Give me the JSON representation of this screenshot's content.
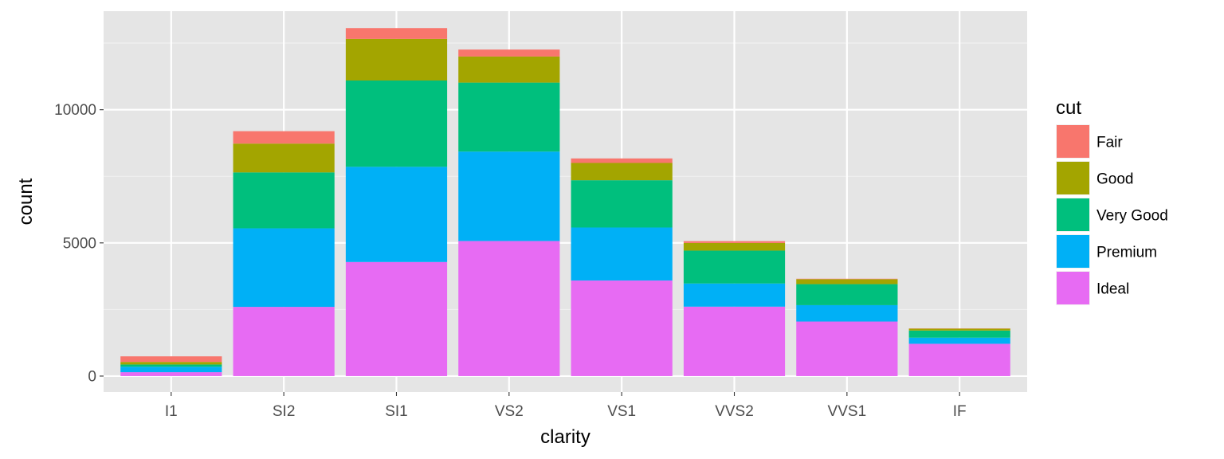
{
  "chart_data": {
    "type": "bar",
    "stacked": true,
    "title": "",
    "xlabel": "clarity",
    "ylabel": "count",
    "categories": [
      "I1",
      "SI2",
      "SI1",
      "VS2",
      "VS1",
      "VVS2",
      "VVS1",
      "IF"
    ],
    "series": [
      {
        "name": "Fair",
        "color": "#F8766D",
        "values": [
          210,
          466,
          408,
          261,
          170,
          69,
          17,
          9
        ]
      },
      {
        "name": "Good",
        "color": "#A3A500",
        "values": [
          96,
          1081,
          1560,
          978,
          648,
          286,
          186,
          71
        ]
      },
      {
        "name": "Very Good",
        "color": "#00BF7D",
        "values": [
          84,
          2100,
          3240,
          2591,
          1775,
          1235,
          789,
          268
        ]
      },
      {
        "name": "Premium",
        "color": "#00B0F6",
        "values": [
          205,
          2949,
          3575,
          3357,
          1989,
          870,
          616,
          230
        ]
      },
      {
        "name": "Ideal",
        "color": "#E76BF3",
        "values": [
          146,
          2598,
          4282,
          5071,
          3589,
          2606,
          2047,
          1212
        ]
      }
    ],
    "ylim": [
      -600,
      13700
    ],
    "yticks": [
      0,
      5000,
      10000
    ],
    "ytick_labels": [
      "0",
      "5000",
      "10000"
    ],
    "grid": true,
    "panel_background": "#E5E5E5",
    "legend": {
      "title": "cut",
      "position": "right"
    }
  }
}
